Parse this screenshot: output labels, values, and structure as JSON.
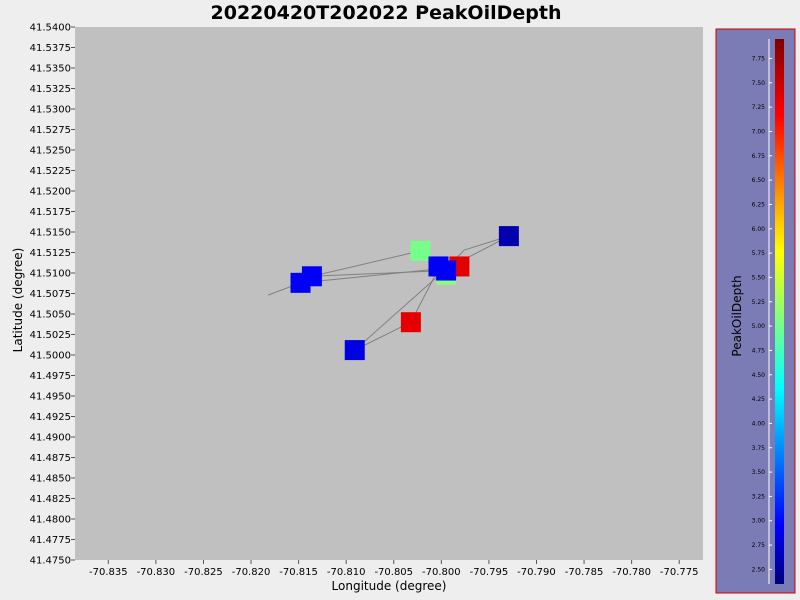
{
  "chart_data": {
    "type": "scatter",
    "title": "20220420T202022 PeakOilDepth",
    "xlabel": "Longitude (degree)",
    "ylabel": "Latitude (degree)",
    "xlim": [
      -70.8385,
      -70.7725
    ],
    "ylim": [
      41.475,
      41.54
    ],
    "x_ticks": [
      "-70.835",
      "-70.830",
      "-70.825",
      "-70.820",
      "-70.815",
      "-70.810",
      "-70.805",
      "-70.800",
      "-70.795",
      "-70.790",
      "-70.785",
      "-70.780",
      "-70.775"
    ],
    "y_ticks": [
      "41.4750",
      "41.4775",
      "41.4800",
      "41.4825",
      "41.4850",
      "41.4875",
      "41.4900",
      "41.4925",
      "41.4950",
      "41.4975",
      "41.5000",
      "41.5025",
      "41.5050",
      "41.5075",
      "41.5100",
      "41.5125",
      "41.5150",
      "41.5175",
      "41.5200",
      "41.5225",
      "41.5250",
      "41.5275",
      "41.5300",
      "41.5325",
      "41.5350",
      "41.5375",
      "41.5400"
    ],
    "track": [
      [
        -70.8182,
        41.5073
      ],
      [
        -70.8148,
        41.5088
      ],
      [
        -70.8003,
        41.5105
      ],
      [
        -70.8032,
        41.504
      ],
      [
        -70.8091,
        41.5006
      ],
      [
        -70.7995,
        41.5105
      ],
      [
        -70.7976,
        41.5128
      ],
      [
        -70.7929,
        41.5145
      ],
      [
        -70.7995,
        41.5105
      ],
      [
        -70.8022,
        41.5127
      ],
      [
        -70.8136,
        41.5096
      ],
      [
        -70.7995,
        41.5103
      ]
    ],
    "points": [
      {
        "x": -70.8022,
        "y": 41.5127,
        "value": 5.1
      },
      {
        "x": -70.7995,
        "y": 41.5098,
        "value": 5.2
      },
      {
        "x": -70.7981,
        "y": 41.5108,
        "value": 7.4
      },
      {
        "x": -70.8032,
        "y": 41.504,
        "value": 7.4
      },
      {
        "x": -70.7929,
        "y": 41.5145,
        "value": 2.6
      },
      {
        "x": -70.8091,
        "y": 41.5006,
        "value": 2.9
      },
      {
        "x": -70.8148,
        "y": 41.5088,
        "value": 3.0
      },
      {
        "x": -70.8136,
        "y": 41.5096,
        "value": 3.0
      },
      {
        "x": -70.8003,
        "y": 41.5108,
        "value": 3.0
      },
      {
        "x": -70.7995,
        "y": 41.5103,
        "value": 3.0
      }
    ],
    "colorbar": {
      "label": "PeakOilDepth",
      "min": 2.35,
      "max": 7.95,
      "ticks": [
        "2.50",
        "2.75",
        "3.00",
        "3.25",
        "3.50",
        "3.75",
        "4.00",
        "4.25",
        "4.50",
        "4.75",
        "5.00",
        "5.25",
        "5.50",
        "5.75",
        "6.00",
        "6.25",
        "6.50",
        "6.75",
        "7.00",
        "7.25",
        "7.50",
        "7.75"
      ],
      "colormap": "jet"
    },
    "colors": {
      "background": "#eeeeee",
      "plot_area": "#c0c0c0",
      "colorbar_panel": "#7b7bb5",
      "colorbar_border": "#cc0000",
      "track_line": "#808080"
    }
  }
}
